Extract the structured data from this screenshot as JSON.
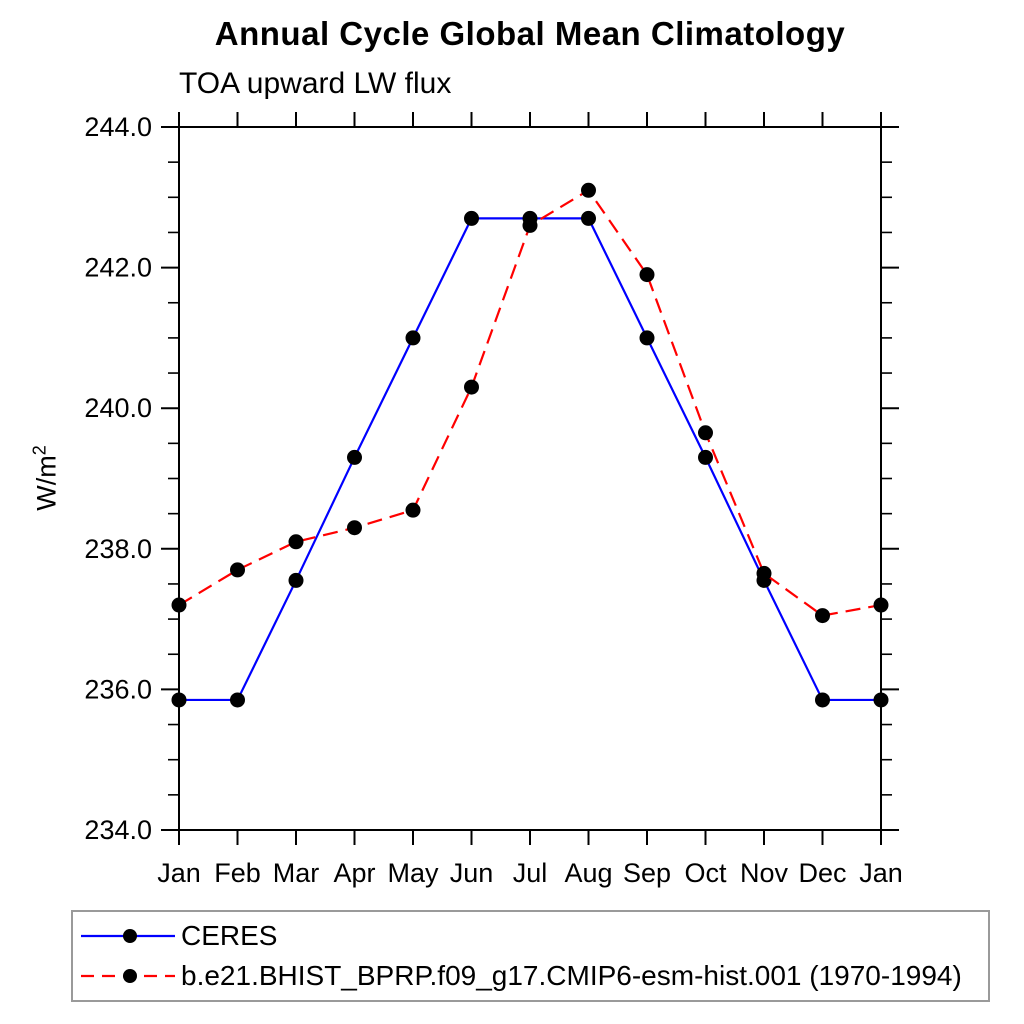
{
  "title": "Annual Cycle Global Mean Climatology",
  "subtitle": "TOA upward LW flux",
  "y_axis": {
    "label_base": "W/m",
    "label_exp": "2"
  },
  "chart_data": {
    "type": "line",
    "x": [
      "Jan",
      "Feb",
      "Mar",
      "Apr",
      "May",
      "Jun",
      "Jul",
      "Aug",
      "Sep",
      "Oct",
      "Nov",
      "Dec",
      "Jan"
    ],
    "ylabel": "W/m^2",
    "ylim": [
      234.0,
      244.0
    ],
    "ytick_major_step": 2.0,
    "ytick_minor_step": 0.5,
    "ytick_labels": [
      "234.0",
      "236.0",
      "238.0",
      "240.0",
      "242.0",
      "244.0"
    ],
    "grid": false,
    "legend_position": "bottom-left-outside",
    "frame_color": "#000000",
    "series": [
      {
        "name": "CERES",
        "line_color": "#0000ff",
        "line_style": "solid",
        "marker": "filled-circle",
        "marker_color": "#000000",
        "values": [
          235.85,
          235.85,
          237.55,
          239.3,
          241.0,
          242.7,
          242.7,
          242.7,
          241.0,
          239.3,
          237.55,
          235.85,
          235.85
        ]
      },
      {
        "name": "b.e21.BHIST_BPRP.f09_g17.CMIP6-esm-hist.001 (1970-1994)",
        "line_color": "#ff0000",
        "line_style": "dashed",
        "marker": "filled-circle",
        "marker_color": "#000000",
        "values": [
          237.2,
          237.7,
          238.1,
          238.3,
          238.55,
          240.3,
          242.6,
          243.1,
          241.9,
          239.65,
          237.65,
          237.05,
          237.2
        ]
      }
    ]
  }
}
